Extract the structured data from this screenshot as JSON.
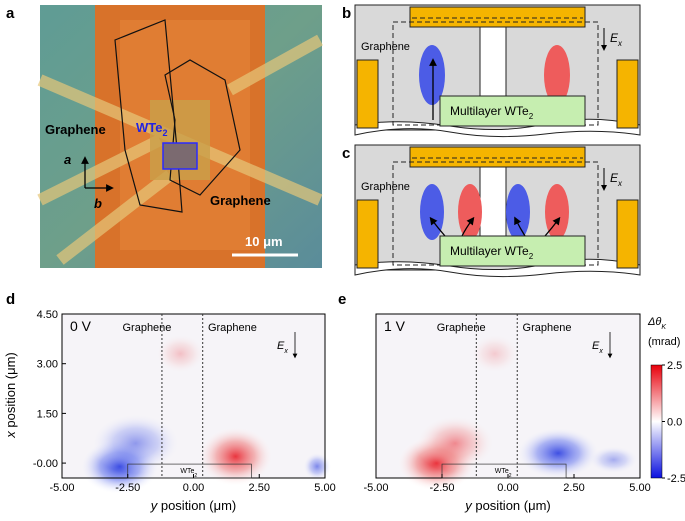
{
  "panels": {
    "a": {
      "label": "a",
      "graphene_left": "Graphene",
      "wte2": {
        "text": "WTe",
        "sub": "2"
      },
      "graphene_right": "Graphene",
      "axis_a": "a",
      "axis_b": "b",
      "scale": "10 μm"
    },
    "b": {
      "label": "b",
      "graphene": "Graphene",
      "wte2": {
        "text": "Multilayer WTe",
        "sub": "2"
      },
      "field": {
        "text": "E",
        "sub": "x"
      }
    },
    "c": {
      "label": "c",
      "graphene": "Graphene",
      "wte2": {
        "text": "Multilayer WTe",
        "sub": "2"
      },
      "field": {
        "text": "E",
        "sub": "x"
      }
    },
    "d": {
      "label": "d",
      "voltage": "0 V",
      "graphene_left": "Graphene",
      "graphene_right": "Graphene",
      "field": {
        "text": "E",
        "sub": "x"
      },
      "wte2": {
        "text": "WTe",
        "sub": "2"
      }
    },
    "e": {
      "label": "e",
      "voltage": "1 V",
      "graphene_left": "Graphene",
      "graphene_right": "Graphene",
      "field": {
        "text": "E",
        "sub": "x"
      },
      "wte2": {
        "text": "WTe",
        "sub": "2"
      }
    }
  },
  "axes": {
    "xlabel": {
      "italic": "y",
      "text": " position (μm)"
    },
    "ylabel": {
      "italic": "x",
      "text": " position (μm)"
    },
    "xlim": [
      -5,
      5
    ],
    "xticks": [
      {
        "value": -5,
        "label": "-5.00"
      },
      {
        "value": -2.5,
        "label": "-2.50"
      },
      {
        "value": 0,
        "label": "0.00"
      },
      {
        "value": 2.5,
        "label": "2.50"
      },
      {
        "value": 5,
        "label": "5.00"
      }
    ],
    "ylim": [
      -0.45,
      4.5
    ],
    "yticks": [
      {
        "value": 4.5,
        "label": "4.50"
      },
      {
        "value": 3,
        "label": "3.00"
      },
      {
        "value": 1.5,
        "label": "1.50"
      },
      {
        "value": 0,
        "label": "-0.00"
      }
    ]
  },
  "colorbar": {
    "title": {
      "text": "Δθ",
      "sub": "K"
    },
    "unit": "(mrad)",
    "clim": [
      -2.5,
      2.5
    ],
    "ticks": [
      {
        "value": 2.5,
        "label": "2.5"
      },
      {
        "value": 0,
        "label": "0.0"
      },
      {
        "value": -2.5,
        "label": "-2.5"
      }
    ]
  }
}
